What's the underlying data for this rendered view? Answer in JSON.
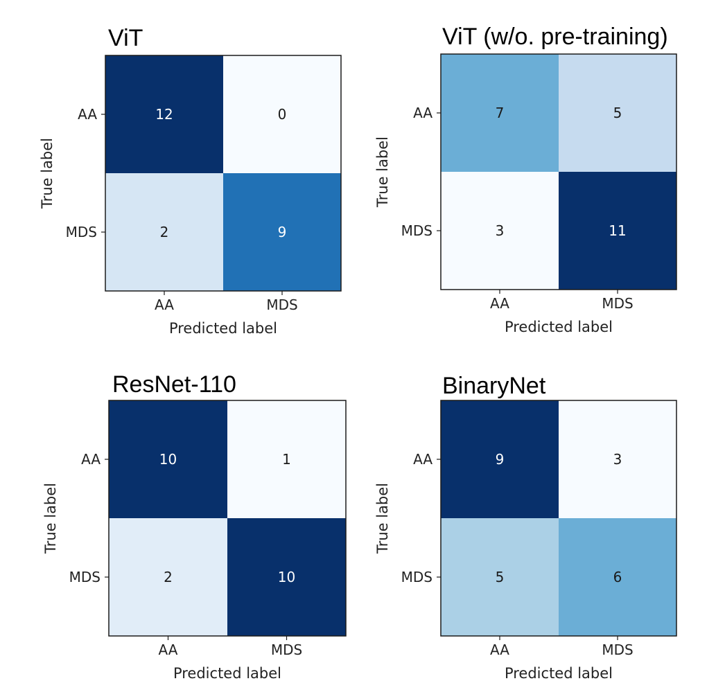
{
  "chart_data": [
    {
      "type": "heatmap",
      "title": "ViT",
      "xlabel": "Predicted label",
      "ylabel": "True label",
      "x_categories": [
        "AA",
        "MDS"
      ],
      "y_categories": [
        "AA",
        "MDS"
      ],
      "values": [
        [
          12,
          0
        ],
        [
          2,
          9
        ]
      ],
      "colormap": "Blues",
      "grid": false
    },
    {
      "type": "heatmap",
      "title": "ViT (w/o. pre-training)",
      "xlabel": "Predicted label",
      "ylabel": "True label",
      "x_categories": [
        "AA",
        "MDS"
      ],
      "y_categories": [
        "AA",
        "MDS"
      ],
      "values": [
        [
          7,
          5
        ],
        [
          3,
          11
        ]
      ],
      "colormap": "Blues",
      "grid": false
    },
    {
      "type": "heatmap",
      "title": "ResNet-110",
      "xlabel": "Predicted label",
      "ylabel": "True label",
      "x_categories": [
        "AA",
        "MDS"
      ],
      "y_categories": [
        "AA",
        "MDS"
      ],
      "values": [
        [
          10,
          1
        ],
        [
          2,
          10
        ]
      ],
      "colormap": "Blues",
      "grid": false
    },
    {
      "type": "heatmap",
      "title": "BinaryNet",
      "xlabel": "Predicted label",
      "ylabel": "True label",
      "x_categories": [
        "AA",
        "MDS"
      ],
      "y_categories": [
        "AA",
        "MDS"
      ],
      "values": [
        [
          9,
          3
        ],
        [
          5,
          6
        ]
      ],
      "colormap": "Blues",
      "grid": false
    }
  ]
}
